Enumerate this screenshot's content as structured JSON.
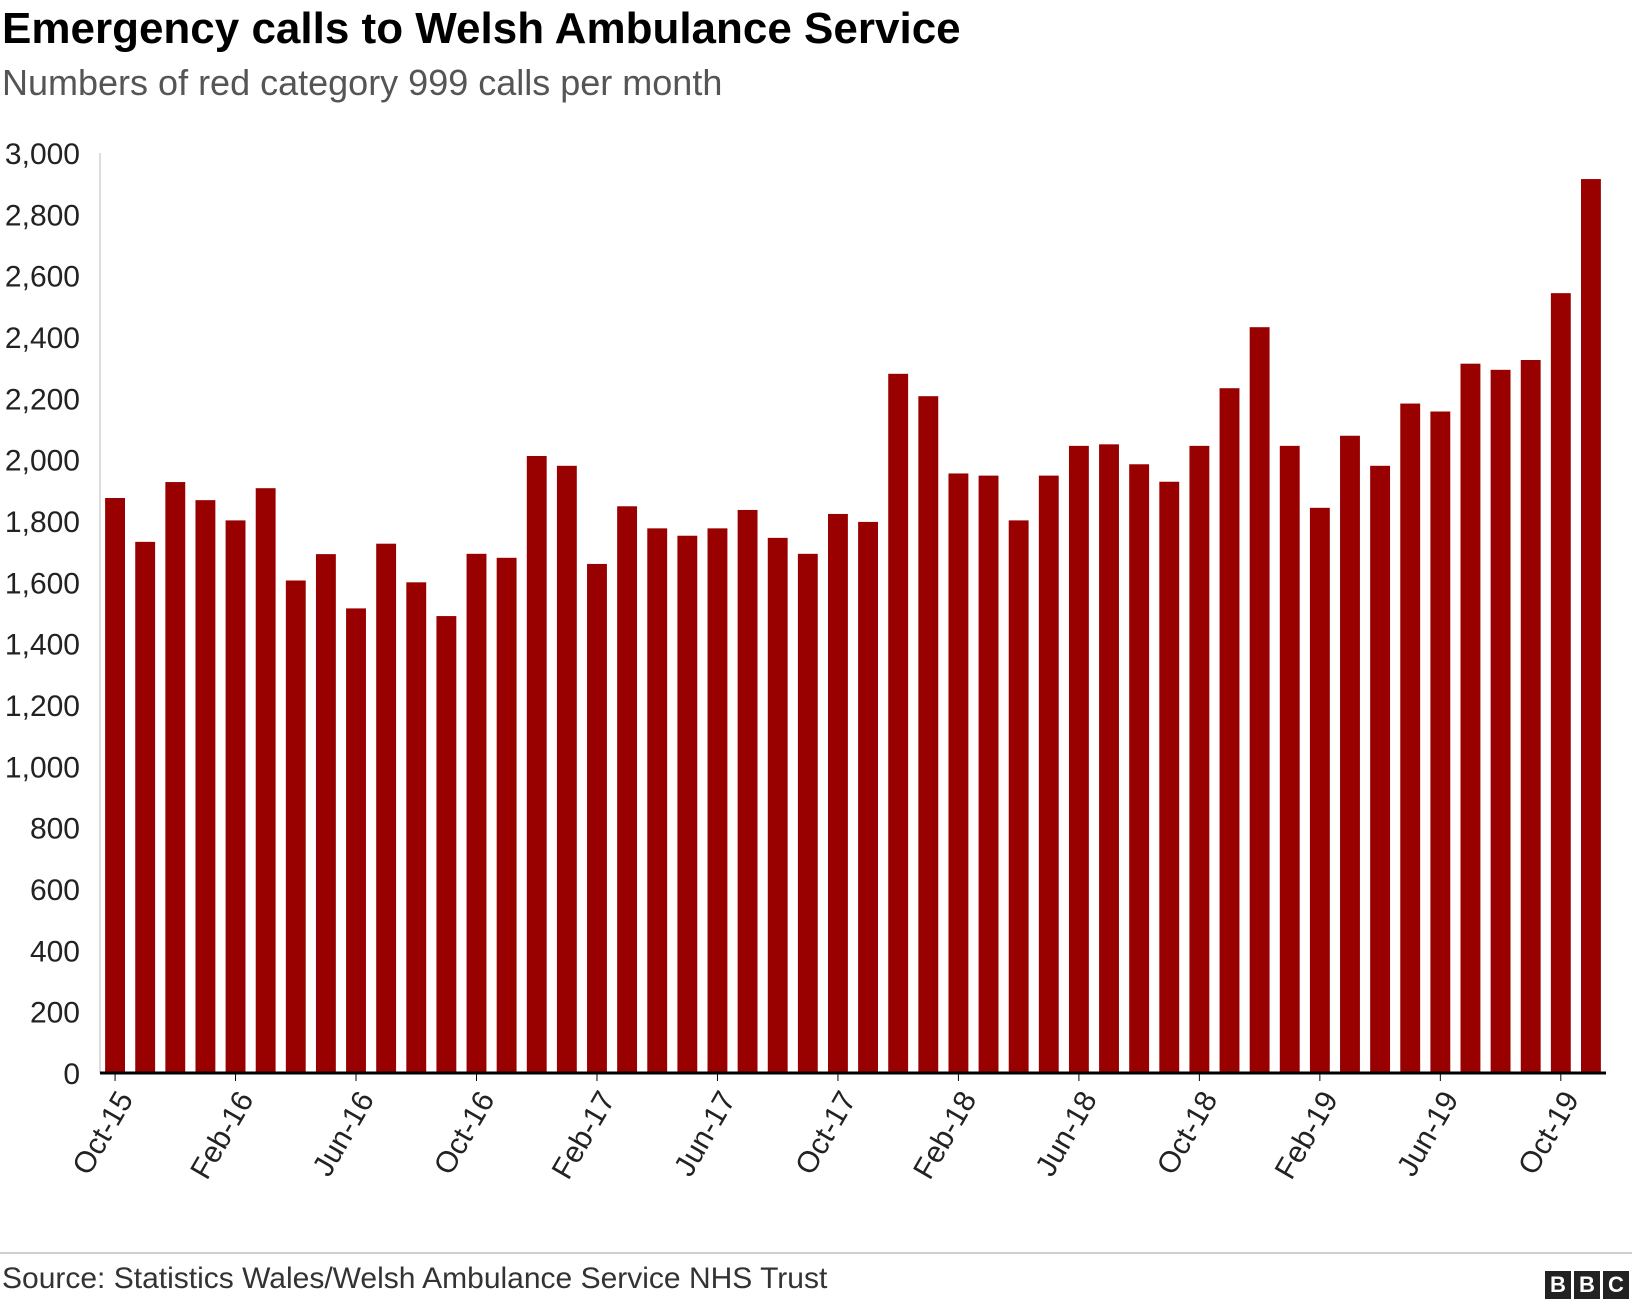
{
  "header": {
    "title": "Emergency calls to Welsh Ambulance Service",
    "subtitle": "Numbers of red category 999 calls per month"
  },
  "footer": {
    "source": "Source: Statistics Wales/Welsh Ambulance Service NHS Trust",
    "logo": [
      "B",
      "B",
      "C"
    ]
  },
  "chart_data": {
    "type": "bar",
    "title": "Emergency calls to Welsh Ambulance Service",
    "subtitle": "Numbers of red category 999 calls per month",
    "xlabel": "",
    "ylabel": "",
    "ylim": [
      0,
      3000
    ],
    "yticks": [
      0,
      200,
      400,
      600,
      800,
      1000,
      1200,
      1400,
      1600,
      1800,
      2000,
      2200,
      2400,
      2600,
      2800,
      3000
    ],
    "ytick_labels": [
      "0",
      "200",
      "400",
      "600",
      "800",
      "1,000",
      "1,200",
      "1,400",
      "1,600",
      "1,800",
      "2,000",
      "2,200",
      "2,400",
      "2,600",
      "2,800",
      "3,000"
    ],
    "grid": false,
    "bar_color": "#990000",
    "categories": [
      "Oct-15",
      "Nov-15",
      "Dec-15",
      "Jan-16",
      "Feb-16",
      "Mar-16",
      "Apr-16",
      "May-16",
      "Jun-16",
      "Jul-16",
      "Aug-16",
      "Sep-16",
      "Oct-16",
      "Nov-16",
      "Dec-16",
      "Jan-17",
      "Feb-17",
      "Mar-17",
      "Apr-17",
      "May-17",
      "Jun-17",
      "Jul-17",
      "Aug-17",
      "Sep-17",
      "Oct-17",
      "Nov-17",
      "Dec-17",
      "Jan-18",
      "Feb-18",
      "Mar-18",
      "Apr-18",
      "May-18",
      "Jun-18",
      "Jul-18",
      "Aug-18",
      "Sep-18",
      "Oct-18",
      "Nov-18",
      "Dec-18",
      "Jan-19",
      "Feb-19",
      "Mar-19",
      "Apr-19",
      "May-19",
      "Jun-19",
      "Jul-19",
      "Aug-19",
      "Sep-19",
      "Oct-19",
      "Nov-19"
    ],
    "x_tick_labels": [
      "Oct-15",
      "Feb-16",
      "Jun-16",
      "Oct-16",
      "Feb-17",
      "Jun-17",
      "Oct-17",
      "Feb-18",
      "Jun-18",
      "Oct-18",
      "Feb-19",
      "Jun-19",
      "Oct-19"
    ],
    "values": [
      1875,
      1732,
      1927,
      1868,
      1802,
      1907,
      1606,
      1692,
      1515,
      1726,
      1600,
      1490,
      1693,
      1680,
      2012,
      1980,
      1660,
      1848,
      1776,
      1752,
      1776,
      1836,
      1745,
      1693,
      1823,
      1797,
      2280,
      2207,
      1955,
      1948,
      1802,
      1948,
      2045,
      2050,
      1985,
      1928,
      2045,
      2233,
      2432,
      2045,
      1843,
      2078,
      1980,
      2183,
      2157,
      2313,
      2293,
      2325,
      2543,
      2915
    ]
  }
}
